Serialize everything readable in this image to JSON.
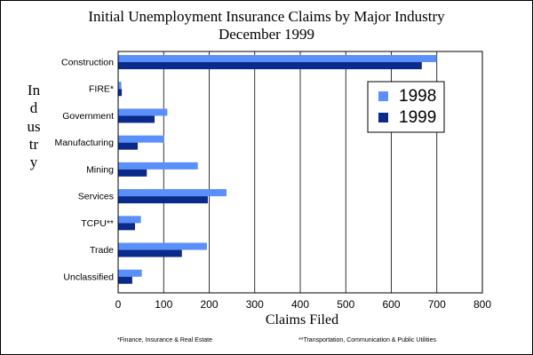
{
  "chart_data": {
    "type": "bar",
    "orientation": "horizontal",
    "title": "Initial Unemployment Insurance Claims by Major Industry",
    "subtitle": "December 1999",
    "xlabel": "Claims Filed",
    "ylabel": "Industry",
    "categories": [
      "Construction",
      "FIRE*",
      "Government",
      "Manufacturing",
      "Mining",
      "Services",
      "TCPU**",
      "Trade",
      "Unclassified"
    ],
    "series": [
      {
        "name": "1998",
        "color": "#5b8ff9",
        "values": [
          700,
          7,
          108,
          101,
          175,
          238,
          50,
          195,
          52
        ]
      },
      {
        "name": "1999",
        "color": "#0a2a8c",
        "values": [
          667,
          8,
          80,
          43,
          63,
          197,
          37,
          140,
          31
        ]
      }
    ],
    "xlim": [
      0,
      800
    ],
    "xticks": [
      0,
      100,
      200,
      300,
      400,
      500,
      600,
      700,
      800
    ],
    "grid": "vertical",
    "legend_position": "top-right"
  },
  "footnotes": {
    "left": "*Finance, Insurance & Real Estate",
    "right": "**Transportation, Communication & Public Utilities"
  }
}
